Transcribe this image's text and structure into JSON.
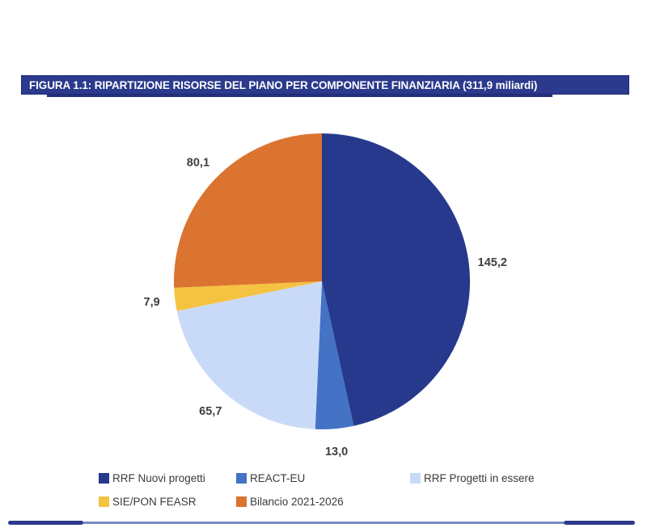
{
  "figure": {
    "title": "FIGURA 1.1: RIPARTIZIONE RISORSE DEL PIANO PER COMPONENTE FINANZIARIA (311,9 miliardi)"
  },
  "chart_data": {
    "type": "pie",
    "title": "FIGURA 1.1: RIPARTIZIONE RISORSE DEL PIANO PER COMPONENTE FINANZIARIA (311,9 miliardi)",
    "total": 311.9,
    "total_label": "311,9 miliardi",
    "start_angle_deg": 0,
    "direction": "clockwise",
    "segments": [
      {
        "name": "RRF Nuovi progetti",
        "value": 145.2,
        "label": "145,2",
        "color": "#26398C"
      },
      {
        "name": "REACT-EU",
        "value": 13.0,
        "label": "13,0",
        "color": "#4472C4"
      },
      {
        "name": "RRF Progetti in essere",
        "value": 65.7,
        "label": "65,7",
        "color": "#C9DAF8"
      },
      {
        "name": "SIE/PON FEASR",
        "value": 7.9,
        "label": "7,9",
        "color": "#F5C342"
      },
      {
        "name": "Bilancio 2021-2026",
        "value": 80.1,
        "label": "80,1",
        "color": "#DB7430"
      }
    ],
    "legend": {
      "position": "bottom",
      "rows": 2,
      "entries": [
        "RRF Nuovi progetti",
        "REACT-EU",
        "RRF Progetti in essere",
        "SIE/PON FEASR",
        "Bilancio 2021-2026"
      ]
    }
  },
  "colors": {
    "title_bar_bg": "#2B3A8C",
    "title_bar_border": "#1E2C75",
    "title_bar_text": "#FFFFFF",
    "value_label_text": "#3F3F3F",
    "legend_text": "#3A3A3A",
    "rule_dark": "#2D3A8C",
    "rule_light": "#7C8AC0"
  }
}
